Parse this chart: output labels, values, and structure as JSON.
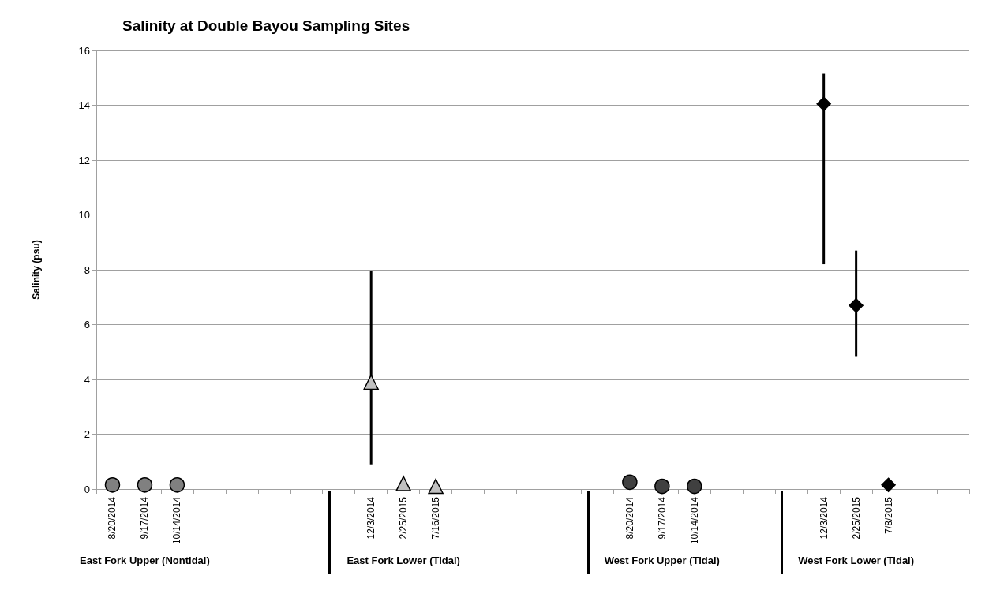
{
  "chart_data": {
    "type": "scatter",
    "title": "Salinity at Double Bayou Sampling Sites",
    "ylabel": "Salinity (psu)",
    "categories": [
      "8/20/2014",
      "9/17/2014",
      "10/14/2014",
      null,
      null,
      null,
      null,
      null,
      "12/3/2014",
      "2/25/2015",
      "7/16/2015",
      null,
      null,
      null,
      null,
      null,
      "8/20/2014",
      "9/17/2014",
      "10/14/2014",
      null,
      null,
      null,
      "12/3/2014",
      "2/25/2015",
      "7/8/2015",
      null,
      null
    ],
    "series": [
      {
        "color": "#808080",
        "marker": "circle",
        "values": [
          0.15,
          0.15,
          0.15,
          null,
          null,
          null,
          null,
          null,
          null,
          null,
          null,
          null,
          null,
          null,
          null,
          null,
          null,
          null,
          null,
          null,
          null,
          null,
          null,
          null,
          null,
          null,
          null
        ]
      },
      {
        "color": "#c0c0c0",
        "marker": "triangle",
        "values": [
          null,
          null,
          null,
          null,
          null,
          null,
          null,
          null,
          3.9,
          0.2,
          0.1,
          null,
          null,
          null,
          null,
          null,
          null,
          null,
          null,
          null,
          null,
          null,
          null,
          null,
          null,
          null,
          null
        ],
        "errors": [
          null,
          null,
          null,
          null,
          null,
          null,
          null,
          null,
          [
            0.9,
            7.95
          ],
          null,
          null,
          null,
          null,
          null,
          null,
          null,
          null,
          null,
          null,
          null,
          null,
          null,
          null,
          null,
          null,
          null,
          null
        ]
      },
      {
        "color": "#404040",
        "marker": "circle",
        "values": [
          null,
          null,
          null,
          null,
          null,
          null,
          null,
          null,
          null,
          null,
          null,
          null,
          null,
          null,
          null,
          null,
          0.25,
          0.1,
          0.1,
          null,
          null,
          null,
          null,
          null,
          null,
          null,
          null
        ]
      },
      {
        "color": "#000000",
        "marker": "diamond",
        "values": [
          null,
          null,
          null,
          null,
          null,
          null,
          null,
          null,
          null,
          null,
          null,
          null,
          null,
          null,
          null,
          null,
          null,
          null,
          null,
          null,
          null,
          null,
          14.05,
          6.7,
          0.15,
          null,
          null
        ],
        "errors": [
          null,
          null,
          null,
          null,
          null,
          null,
          null,
          null,
          null,
          null,
          null,
          null,
          null,
          null,
          null,
          null,
          null,
          null,
          null,
          null,
          null,
          null,
          [
            8.2,
            15.15
          ],
          [
            4.85,
            8.7
          ],
          null,
          null,
          null
        ]
      }
    ],
    "ylim": [
      0,
      16
    ],
    "yticks": [
      0,
      2,
      4,
      6,
      8,
      10,
      12,
      14,
      16
    ],
    "grid": "y",
    "annotations": [
      "East Fork Upper (Nontidal)",
      "East Fork Lower (Tidal)",
      "West Fork Upper (Tidal)",
      "West Fork Lower (Tidal)"
    ]
  }
}
